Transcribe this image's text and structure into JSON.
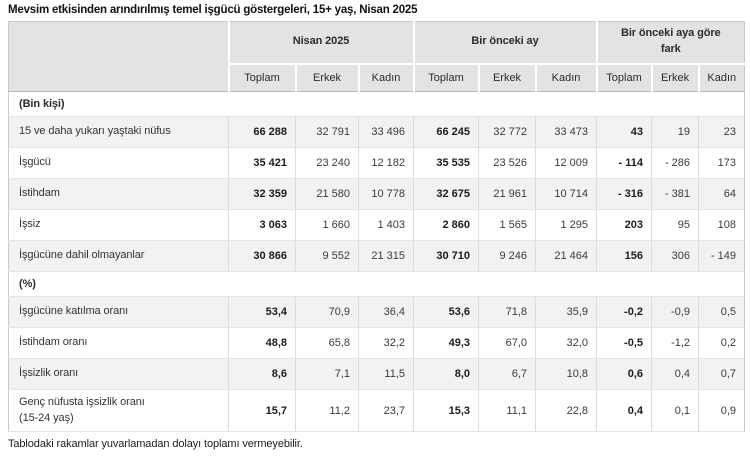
{
  "title": "Mevsim etkisinden arındırılmış temel işgücü göstergeleri, 15+ yaş, Nisan 2025",
  "footnote": "Tablodaki rakamlar yuvarlamadan dolayı toplamı vermeyebilir.",
  "colors": {
    "header_bg": "#e3e3e3",
    "striped_row_bg": "#f2f2f2",
    "border_light": "#e4e4e4",
    "border_dark": "#b9b9b9"
  },
  "chart_data": {
    "type": "table",
    "title": "Mevsim etkisinden arındırılmış temel işgücü göstergeleri, 15+ yaş, Nisan 2025",
    "column_groups": [
      "Nisan 2025",
      "Bir önceki ay",
      "Bir önceki aya göre fark"
    ],
    "sub_columns": [
      "Toplam",
      "Erkek",
      "Kadın"
    ],
    "sections": [
      {
        "label": "(Bin kişi)",
        "rows": [
          {
            "label": "15 ve daha yukarı yaştaki nüfus",
            "values": [
              "66 288",
              "32 791",
              "33 496",
              "66 245",
              "32 772",
              "33 473",
              "43",
              "19",
              "23"
            ]
          },
          {
            "label": "İşgücü",
            "values": [
              "35 421",
              "23 240",
              "12 182",
              "35 535",
              "23 526",
              "12 009",
              "- 114",
              "- 286",
              "173"
            ]
          },
          {
            "label": "İstihdam",
            "values": [
              "32 359",
              "21 580",
              "10 778",
              "32 675",
              "21 961",
              "10 714",
              "- 316",
              "- 381",
              "64"
            ]
          },
          {
            "label": "İşsiz",
            "values": [
              "3 063",
              "1 660",
              "1 403",
              "2 860",
              "1 565",
              "1 295",
              "203",
              "95",
              "108"
            ]
          },
          {
            "label": "İşgücüne dahil olmayanlar",
            "values": [
              "30 866",
              "9 552",
              "21 315",
              "30 710",
              "9 246",
              "21 464",
              "156",
              "306",
              "- 149"
            ]
          }
        ]
      },
      {
        "label": "(%)",
        "rows": [
          {
            "label": "İşgücüne katılma oranı",
            "values": [
              "53,4",
              "70,9",
              "36,4",
              "53,6",
              "71,8",
              "35,9",
              "-0,2",
              "-0,9",
              "0,5"
            ]
          },
          {
            "label": "İstihdam oranı",
            "values": [
              "48,8",
              "65,8",
              "32,2",
              "49,3",
              "67,0",
              "32,0",
              "-0,5",
              "-1,2",
              "0,2"
            ]
          },
          {
            "label": "İşsizlik oranı",
            "values": [
              "8,6",
              "7,1",
              "11,5",
              "8,0",
              "6,7",
              "10,8",
              "0,6",
              "0,4",
              "0,7"
            ]
          },
          {
            "label": "Genç nüfusta işsizlik oranı\n(15-24 yaş)",
            "values": [
              "15,7",
              "11,2",
              "23,7",
              "15,3",
              "11,1",
              "22,8",
              "0,4",
              "0,1",
              "0,9"
            ]
          }
        ]
      }
    ]
  }
}
